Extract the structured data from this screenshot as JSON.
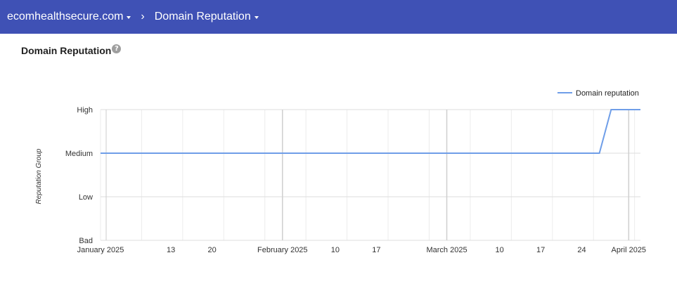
{
  "header": {
    "domain": "ecomhealthsecure.com",
    "separator": "›",
    "section": "Domain Reputation"
  },
  "page": {
    "title": "Domain Reputation",
    "help_symbol": "?"
  },
  "colors": {
    "header_bg": "#3f51b5",
    "series_line": "#6f9ee8"
  },
  "icons": [
    "dropdown-caret-icon",
    "chevron-right-icon",
    "help-icon"
  ],
  "chart_data": {
    "type": "line",
    "ylabel": "Reputation Group",
    "y_categories": [
      "Bad",
      "Low",
      "Medium",
      "High"
    ],
    "x_range": [
      "2025-01-01",
      "2025-04-03"
    ],
    "x_ticks": [
      {
        "date": "2025-01-01",
        "label": "January 2025"
      },
      {
        "date": "2025-01-13",
        "label": "13"
      },
      {
        "date": "2025-01-20",
        "label": "20"
      },
      {
        "date": "2025-02-01",
        "label": "February 2025"
      },
      {
        "date": "2025-02-10",
        "label": "10"
      },
      {
        "date": "2025-02-17",
        "label": "17"
      },
      {
        "date": "2025-03-01",
        "label": "March 2025"
      },
      {
        "date": "2025-03-10",
        "label": "10"
      },
      {
        "date": "2025-03-17",
        "label": "17"
      },
      {
        "date": "2025-03-24",
        "label": "24"
      },
      {
        "date": "2025-04-01",
        "label": "April 2025"
      }
    ],
    "legend_position": "top-right",
    "grid": true,
    "series": [
      {
        "name": "Domain reputation",
        "color": "#6f9ee8",
        "points": [
          {
            "x": "2025-01-01",
            "y": "Medium"
          },
          {
            "x": "2025-03-27",
            "y": "Medium"
          },
          {
            "x": "2025-03-29",
            "y": "High"
          },
          {
            "x": "2025-04-03",
            "y": "High"
          }
        ]
      }
    ]
  }
}
